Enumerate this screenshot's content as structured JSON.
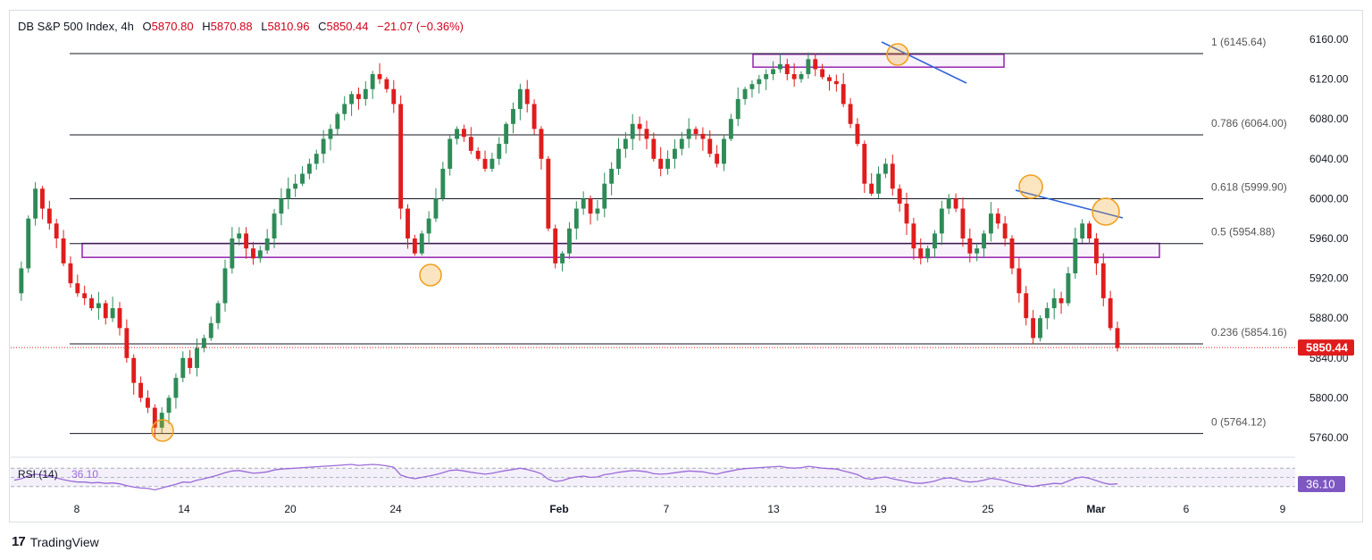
{
  "header": {
    "symbol": "DB S&P 500 Index, 4h",
    "open_label": "O",
    "open": "5870.80",
    "high_label": "H",
    "high": "5870.88",
    "low_label": "L",
    "low": "5810.96",
    "close_label": "C",
    "close": "5850.44",
    "change": "−21.07 (−0.36%)"
  },
  "brand": {
    "logo": "17",
    "name": "TradingView"
  },
  "colors": {
    "up": "#2e8b57",
    "down": "#e01c1c",
    "fib_line": "#131722",
    "zone": "#9b30b5",
    "trendline": "#2f64d8",
    "circle": "#f0a020",
    "rsi": "#9b6ad9",
    "price_tag": "#e01c1c",
    "rsi_tag": "#7e57c2"
  },
  "chart_data": {
    "type": "candlestick",
    "title": "DB S&P 500 Index, 4h",
    "ylim": [
      5735,
      6170
    ],
    "y_ticks": [
      "6160.00",
      "6120.00",
      "6080.00",
      "6040.00",
      "6000.00",
      "5960.00",
      "5920.00",
      "5880.00",
      "5840.00",
      "5800.00",
      "5760.00"
    ],
    "x_ticks": [
      "8",
      "14",
      "20",
      "24",
      "Feb",
      "7",
      "13",
      "19",
      "25",
      "Mar",
      "6",
      "9"
    ],
    "current_price": "5850.44",
    "fib_levels": [
      {
        "label": "1 (6145.64)",
        "value": 6145.64
      },
      {
        "label": "0.786 (6064.00)",
        "value": 6064.0
      },
      {
        "label": "0.618 (5999.90)",
        "value": 5999.9
      },
      {
        "label": "0.5 (5954.88)",
        "value": 5954.88
      },
      {
        "label": "0.236 (5854.16)",
        "value": 5854.16
      },
      {
        "label": "0 (5764.12)",
        "value": 5764.12
      }
    ],
    "zones": [
      {
        "from": 5941,
        "to": 5955
      },
      {
        "from": 6132,
        "to": 6145
      }
    ],
    "price_path": [
      5905,
      5930,
      5980,
      6010,
      5990,
      5975,
      5960,
      5935,
      5915,
      5905,
      5900,
      5890,
      5895,
      5880,
      5890,
      5870,
      5840,
      5815,
      5800,
      5790,
      5770,
      5785,
      5800,
      5820,
      5840,
      5830,
      5850,
      5860,
      5875,
      5895,
      5930,
      5960,
      5965,
      5950,
      5940,
      5948,
      5960,
      5985,
      6000,
      6010,
      6015,
      6025,
      6035,
      6045,
      6060,
      6070,
      6085,
      6095,
      6105,
      6100,
      6110,
      6125,
      6120,
      6110,
      6095,
      5990,
      5960,
      5945,
      5965,
      5980,
      6000,
      6030,
      6060,
      6070,
      6062,
      6048,
      6040,
      6030,
      6040,
      6055,
      6075,
      6090,
      6110,
      6095,
      6070,
      6040,
      5970,
      5935,
      5945,
      5970,
      5990,
      6000,
      5985,
      5990,
      6015,
      6030,
      6050,
      6060,
      6075,
      6070,
      6060,
      6040,
      6030,
      6040,
      6050,
      6060,
      6070,
      6065,
      6060,
      6045,
      6035,
      6060,
      6080,
      6100,
      6110,
      6115,
      6120,
      6125,
      6130,
      6135,
      6125,
      6120,
      6125,
      6140,
      6130,
      6122,
      6118,
      6115,
      6095,
      6075,
      6055,
      6015,
      6005,
      6025,
      6035,
      6010,
      5995,
      5975,
      5950,
      5940,
      5950,
      5965,
      5990,
      6000,
      5990,
      5960,
      5945,
      5950,
      5965,
      5985,
      5975,
      5960,
      5930,
      5905,
      5880,
      5860,
      5880,
      5890,
      5900,
      5895,
      5925,
      5960,
      5975,
      5960,
      5935,
      5900,
      5870,
      5850
    ],
    "rsi": {
      "label": "RSI (14)",
      "value": "36.10",
      "path": [
        44,
        47,
        53,
        57,
        55,
        52,
        49,
        45,
        42,
        40,
        40,
        38,
        39,
        37,
        38,
        36,
        32,
        29,
        27,
        26,
        23,
        27,
        31,
        35,
        40,
        39,
        44,
        47,
        51,
        55,
        60,
        64,
        65,
        62,
        59,
        60,
        62,
        66,
        68,
        69,
        70,
        71,
        72,
        73,
        74,
        75,
        76,
        77,
        78,
        76,
        77,
        78,
        77,
        75,
        72,
        55,
        50,
        47,
        50,
        53,
        56,
        60,
        65,
        66,
        64,
        61,
        59,
        57,
        59,
        62,
        65,
        67,
        70,
        67,
        63,
        58,
        46,
        41,
        43,
        48,
        51,
        53,
        50,
        51,
        56,
        58,
        61,
        63,
        65,
        64,
        62,
        58,
        57,
        58,
        60,
        62,
        64,
        63,
        62,
        59,
        57,
        61,
        64,
        67,
        69,
        70,
        71,
        72,
        73,
        74,
        71,
        70,
        71,
        74,
        72,
        70,
        69,
        68,
        64,
        60,
        56,
        48,
        46,
        49,
        51,
        47,
        44,
        41,
        38,
        37,
        39,
        42,
        47,
        49,
        47,
        42,
        40,
        41,
        44,
        48,
        46,
        43,
        38,
        35,
        32,
        30,
        33,
        35,
        37,
        36,
        42,
        48,
        51,
        48,
        43,
        38,
        35,
        36
      ]
    }
  },
  "rsi_panel": {
    "label": "RSI (14)",
    "value": "36.10"
  }
}
